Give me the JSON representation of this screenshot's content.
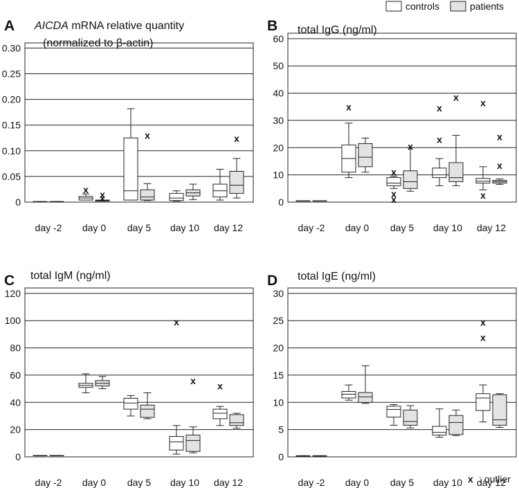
{
  "legend": {
    "controls": "controls",
    "patients": "patients",
    "controls_color": "#ffffff",
    "patients_color": "#e3e3e3",
    "outlier_symbol": "x",
    "outlier_label": ": outlier"
  },
  "chart_data": [
    {
      "type": "box",
      "panel_letter": "A",
      "title_italic": "AICDA",
      "title": " mRNA relative quantity",
      "title_line2": "(normalized to β-actin)",
      "categories": [
        "day -2",
        "day  0",
        "day 5",
        "day 10",
        "day 12"
      ],
      "yticks": [
        "0",
        "0.05",
        "0.10",
        "0.15",
        "0.20",
        "0.25",
        "0.30"
      ],
      "ylim": [
        0,
        0.31
      ],
      "grid": true,
      "series": [
        {
          "name": "controls",
          "boxes": [
            {
              "min": 0.001,
              "q1": 0.001,
              "median": 0.001,
              "q3": 0.001,
              "max": 0.001,
              "outliers": []
            },
            {
              "min": 0.004,
              "q1": 0.004,
              "median": 0.008,
              "q3": 0.011,
              "max": 0.016,
              "outliers": [
                0.024
              ]
            },
            {
              "min": 0.004,
              "q1": 0.004,
              "median": 0.022,
              "q3": 0.125,
              "max": 0.182,
              "outliers": []
            },
            {
              "min": 0.002,
              "q1": 0.003,
              "median": 0.008,
              "q3": 0.017,
              "max": 0.022,
              "outliers": []
            },
            {
              "min": 0.004,
              "q1": 0.01,
              "median": 0.022,
              "q3": 0.035,
              "max": 0.064,
              "outliers": []
            }
          ]
        },
        {
          "name": "patients",
          "boxes": [
            {
              "min": 0.001,
              "q1": 0.001,
              "median": 0.001,
              "q3": 0.001,
              "max": 0.001,
              "outliers": []
            },
            {
              "min": 0.002,
              "q1": 0.002,
              "median": 0.003,
              "q3": 0.004,
              "max": 0.004,
              "outliers": [
                0.015,
                0.008
              ]
            },
            {
              "min": 0.003,
              "q1": 0.004,
              "median": 0.01,
              "q3": 0.024,
              "max": 0.036,
              "outliers": [
                0.13
              ]
            },
            {
              "min": 0.005,
              "q1": 0.012,
              "median": 0.018,
              "q3": 0.024,
              "max": 0.035,
              "outliers": []
            },
            {
              "min": 0.008,
              "q1": 0.017,
              "median": 0.033,
              "q3": 0.06,
              "max": 0.085,
              "outliers": [
                0.124
              ]
            }
          ]
        }
      ]
    },
    {
      "type": "box",
      "panel_letter": "B",
      "title_italic": "",
      "title": "total IgG (ng/ml)",
      "title_line2": "",
      "categories": [
        "day -2",
        "day  0",
        "day 5",
        "day 10",
        "day 12"
      ],
      "yticks": [
        "0",
        "10",
        "20",
        "30",
        "40",
        "50",
        "60"
      ],
      "ylim": [
        0,
        62
      ],
      "grid": true,
      "series": [
        {
          "name": "controls",
          "boxes": [
            {
              "min": 0.5,
              "q1": 0.5,
              "median": 0.5,
              "q3": 0.5,
              "max": 0.5,
              "outliers": []
            },
            {
              "min": 9,
              "q1": 11,
              "median": 16,
              "q3": 21,
              "max": 29,
              "outliers": [
                35
              ]
            },
            {
              "min": 5,
              "q1": 6,
              "median": 7,
              "q3": 9,
              "max": 9.5,
              "outliers": [
                11,
                3,
                1
              ]
            },
            {
              "min": 6,
              "q1": 9,
              "median": 10,
              "q3": 12.5,
              "max": 16,
              "outliers": [
                34.5,
                23
              ]
            },
            {
              "min": 4.5,
              "q1": 7,
              "median": 7.7,
              "q3": 8.7,
              "max": 13,
              "outliers": [
                36.5,
                2.5
              ]
            }
          ]
        },
        {
          "name": "patients",
          "boxes": [
            {
              "min": 0.5,
              "q1": 0.5,
              "median": 0.5,
              "q3": 0.5,
              "max": 0.5,
              "outliers": []
            },
            {
              "min": 11,
              "q1": 13,
              "median": 16.5,
              "q3": 21.5,
              "max": 23.5,
              "outliers": []
            },
            {
              "min": 4,
              "q1": 5,
              "median": 7.5,
              "q3": 11.5,
              "max": 20,
              "outliers": [
                20.5
              ]
            },
            {
              "min": 6,
              "q1": 7.5,
              "median": 9,
              "q3": 14.5,
              "max": 24.5,
              "outliers": [
                38.5
              ]
            },
            {
              "min": 6.5,
              "q1": 7,
              "median": 7.5,
              "q3": 8,
              "max": 8.5,
              "outliers": [
                24,
                13.5
              ]
            }
          ]
        }
      ]
    },
    {
      "type": "box",
      "panel_letter": "C",
      "title_italic": "",
      "title": "total IgM (ng/ml)",
      "title_line2": "",
      "categories": [
        "day -2",
        "day  0",
        "day 5",
        "day 10",
        "day 12"
      ],
      "yticks": [
        "0",
        "20",
        "40",
        "60",
        "80",
        "100",
        "120"
      ],
      "ylim": [
        0,
        124
      ],
      "grid": true,
      "series": [
        {
          "name": "controls",
          "boxes": [
            {
              "min": 1,
              "q1": 1,
              "median": 1,
              "q3": 1,
              "max": 1,
              "outliers": []
            },
            {
              "min": 47,
              "q1": 51,
              "median": 52.5,
              "q3": 54,
              "max": 61,
              "outliers": []
            },
            {
              "min": 30,
              "q1": 35,
              "median": 39.5,
              "q3": 43,
              "max": 45,
              "outliers": []
            },
            {
              "min": 2,
              "q1": 5,
              "median": 11,
              "q3": 15,
              "max": 23,
              "outliers": [
                99
              ]
            },
            {
              "min": 23,
              "q1": 28,
              "median": 32,
              "q3": 35,
              "max": 37,
              "outliers": [
                52
              ]
            }
          ]
        },
        {
          "name": "patients",
          "boxes": [
            {
              "min": 1,
              "q1": 1,
              "median": 1,
              "q3": 1,
              "max": 1,
              "outliers": []
            },
            {
              "min": 50,
              "q1": 52,
              "median": 54,
              "q3": 56,
              "max": 59,
              "outliers": []
            },
            {
              "min": 28,
              "q1": 29,
              "median": 35,
              "q3": 38,
              "max": 47,
              "outliers": []
            },
            {
              "min": 3,
              "q1": 4,
              "median": 12,
              "q3": 16,
              "max": 22,
              "outliers": [
                56
              ]
            },
            {
              "min": 21,
              "q1": 23,
              "median": 25,
              "q3": 31,
              "max": 32,
              "outliers": []
            }
          ]
        }
      ]
    },
    {
      "type": "box",
      "panel_letter": "D",
      "title_italic": "",
      "title": "total IgE (ng/ml)",
      "title_line2": "",
      "categories": [
        "day -2",
        "day  0",
        "day 5",
        "day 10",
        "day 12"
      ],
      "yticks": [
        "0",
        "5",
        "10",
        "15",
        "20",
        "25",
        "30"
      ],
      "ylim": [
        0,
        31
      ],
      "grid": true,
      "series": [
        {
          "name": "controls",
          "boxes": [
            {
              "min": 0.2,
              "q1": 0.2,
              "median": 0.2,
              "q3": 0.2,
              "max": 0.2,
              "outliers": []
            },
            {
              "min": 10.4,
              "q1": 10.8,
              "median": 11.5,
              "q3": 12,
              "max": 13.2,
              "outliers": []
            },
            {
              "min": 5.8,
              "q1": 7.3,
              "median": 8.7,
              "q3": 9.3,
              "max": 9.6,
              "outliers": []
            },
            {
              "min": 3.6,
              "q1": 4,
              "median": 4.5,
              "q3": 5.6,
              "max": 8.8,
              "outliers": []
            },
            {
              "min": 6.4,
              "q1": 8.5,
              "median": 10.8,
              "q3": 11.6,
              "max": 13.2,
              "outliers": [
                24.7,
                21.9
              ]
            }
          ]
        },
        {
          "name": "patients",
          "boxes": [
            {
              "min": 0.2,
              "q1": 0.2,
              "median": 0.2,
              "q3": 0.2,
              "max": 0.2,
              "outliers": []
            },
            {
              "min": 9.8,
              "q1": 10,
              "median": 11,
              "q3": 11.8,
              "max": 16.7,
              "outliers": []
            },
            {
              "min": 5.3,
              "q1": 5.8,
              "median": 6.5,
              "q3": 8.6,
              "max": 9.4,
              "outliers": []
            },
            {
              "min": 3.9,
              "q1": 4.1,
              "median": 6.3,
              "q3": 7.6,
              "max": 8.6,
              "outliers": []
            },
            {
              "min": 5.4,
              "q1": 5.8,
              "median": 6.8,
              "q3": 11.4,
              "max": 11.6,
              "outliers": []
            }
          ]
        }
      ]
    }
  ]
}
